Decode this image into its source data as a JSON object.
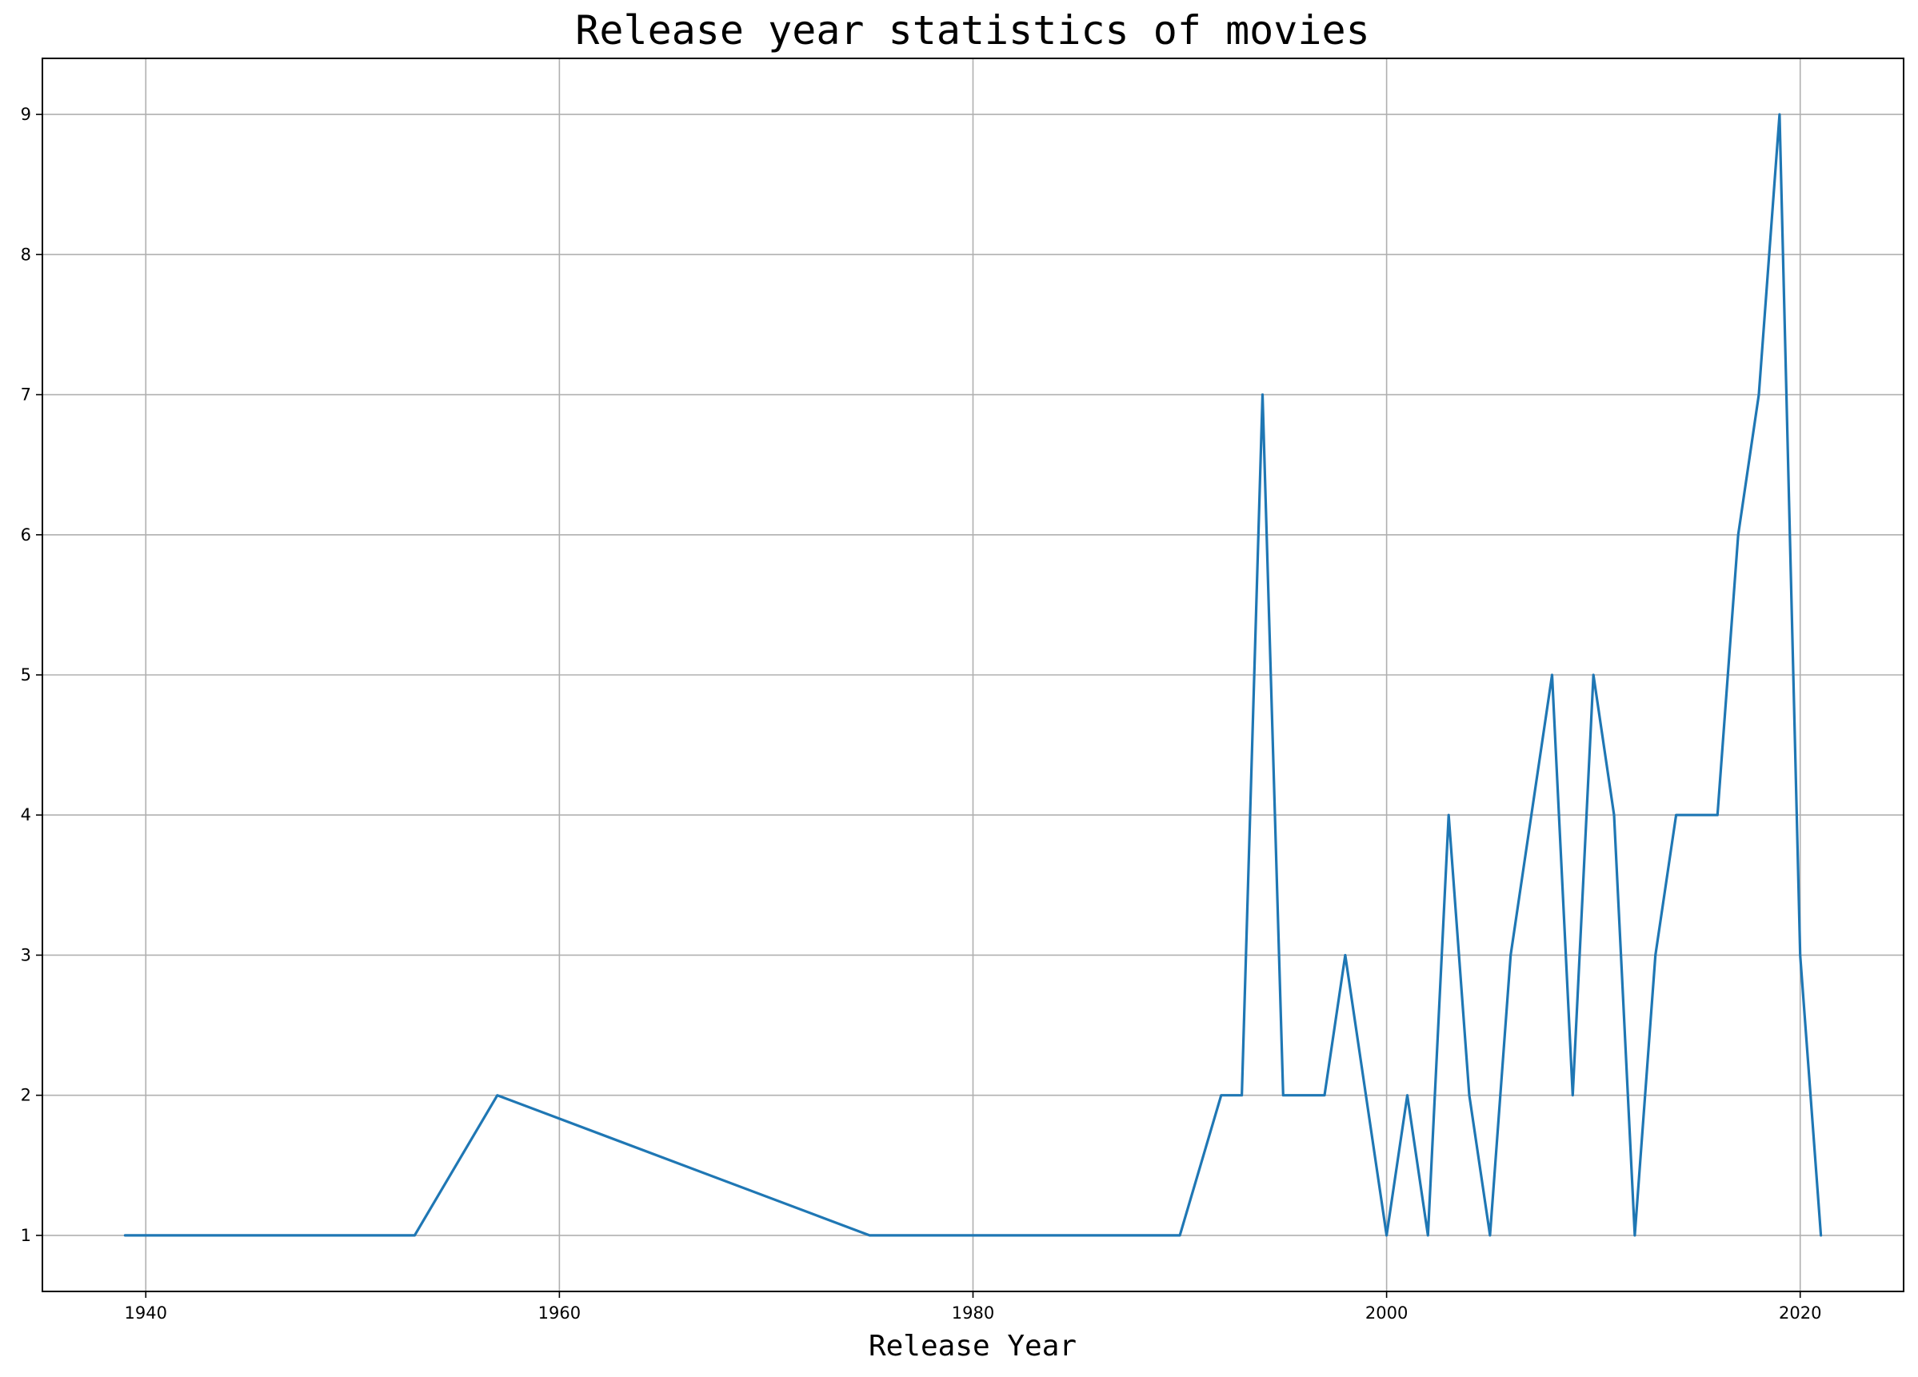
{
  "chart_data": {
    "type": "line",
    "title": "Release year statistics of movies",
    "xlabel": "Release Year",
    "ylabel": "",
    "xlim": [
      1935,
      2025
    ],
    "ylim": [
      0.6,
      9.4
    ],
    "xticks": [
      1940,
      1960,
      1980,
      2000,
      2020
    ],
    "yticks": [
      1,
      2,
      3,
      4,
      5,
      6,
      7,
      8,
      9
    ],
    "grid": true,
    "line_color": "#1f77b4",
    "series": [
      {
        "x": [
          1939,
          1953,
          1957,
          1975,
          1990,
          1992,
          1993,
          1994,
          1995,
          1997,
          1998,
          2000,
          2001,
          2002,
          2003,
          2004,
          2005,
          2006,
          2008,
          2009,
          2010,
          2011,
          2012,
          2013,
          2014,
          2016,
          2017,
          2018,
          2019,
          2020,
          2021
        ],
        "values": [
          1,
          1,
          2,
          1,
          1,
          2,
          2,
          7,
          2,
          2,
          3,
          1,
          2,
          1,
          4,
          2,
          1,
          3,
          5,
          2,
          5,
          4,
          1,
          3,
          4,
          4,
          6,
          7,
          9,
          3,
          1
        ]
      }
    ]
  }
}
